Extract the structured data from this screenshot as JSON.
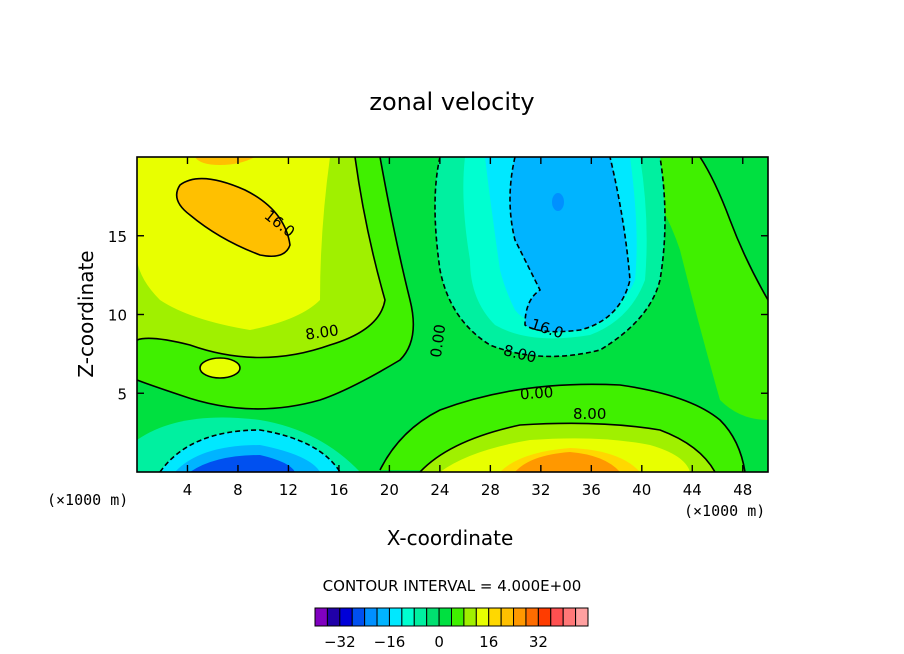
{
  "chart_data": {
    "type": "heatmap",
    "title": "zonal velocity",
    "xlabel": "X-coordinate",
    "ylabel": "Z-coordinate",
    "x_unit_left": "(×1000 m)",
    "x_unit_right": "(×1000 m)",
    "xlim": [
      0,
      50
    ],
    "ylim": [
      0,
      20
    ],
    "x_ticks": [
      "4",
      "8",
      "12",
      "16",
      "20",
      "24",
      "28",
      "32",
      "36",
      "40",
      "44",
      "48"
    ],
    "y_ticks": [
      "5",
      "10",
      "15"
    ],
    "contour_interval": "CONTOUR INTERVAL = 4.000E+00",
    "contour_labels": [
      "16.0",
      "8.00",
      "0.00",
      "16.0",
      "8.00",
      "0.00",
      "8.00"
    ],
    "colorbar": {
      "tick_labels": [
        "−32",
        "−16",
        "0",
        "16",
        "32"
      ],
      "colors": [
        "#8000c0",
        "#2000a8",
        "#0000d8",
        "#0050f0",
        "#0090ff",
        "#00b4ff",
        "#00e8ff",
        "#00ffd0",
        "#00f0a0",
        "#00e070",
        "#00e040",
        "#40f000",
        "#a0f000",
        "#e8ff00",
        "#ffd800",
        "#ffc000",
        "#ff9800",
        "#ff6c00",
        "#ff3c00",
        "#ff5050",
        "#ff7878",
        "#ffa0a0"
      ]
    },
    "grid": false
  }
}
